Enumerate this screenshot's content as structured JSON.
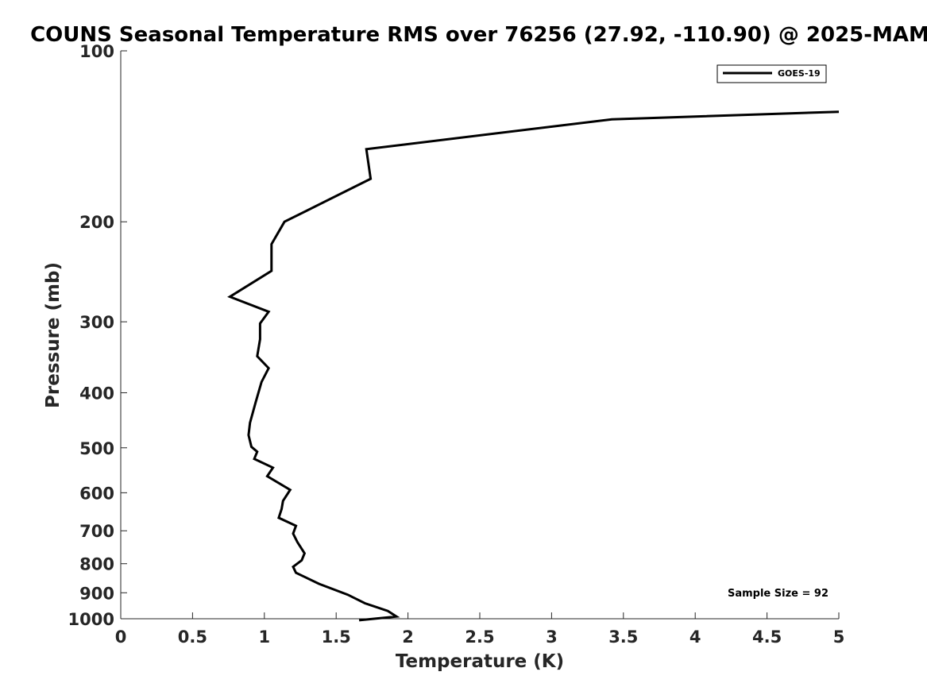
{
  "chart_data": {
    "type": "line",
    "title": "COUNS Seasonal Temperature RMS over 76256 (27.92, -110.90) @ 2025-MAM",
    "xlabel": "Temperature (K)",
    "ylabel": "Pressure (mb)",
    "xlim": [
      0,
      5
    ],
    "ylim": [
      1000,
      100
    ],
    "yscale": "log",
    "grid": false,
    "legend_position": "top-right",
    "x_ticks": [
      "0",
      "0.5",
      "1",
      "1.5",
      "2",
      "2.5",
      "3",
      "3.5",
      "4",
      "4.5",
      "5"
    ],
    "x_tick_values": [
      0,
      0.5,
      1,
      1.5,
      2,
      2.5,
      3,
      3.5,
      4,
      4.5,
      5
    ],
    "y_ticks": [
      "100",
      "200",
      "300",
      "400",
      "500",
      "600",
      "700",
      "800",
      "900",
      "1000"
    ],
    "y_tick_values": [
      100,
      200,
      300,
      400,
      500,
      600,
      700,
      800,
      900,
      1000
    ],
    "series": [
      {
        "name": "GOES-19",
        "color": "#000000",
        "x": [
          5.0,
          3.42,
          1.71,
          1.74,
          1.14,
          1.05,
          1.05,
          0.76,
          1.03,
          0.97,
          0.97,
          0.95,
          1.03,
          0.98,
          0.94,
          0.9,
          0.89,
          0.91,
          0.95,
          0.93,
          1.06,
          1.02,
          1.18,
          1.13,
          1.12,
          1.1,
          1.22,
          1.2,
          1.23,
          1.28,
          1.26,
          1.2,
          1.22,
          1.38,
          1.58,
          1.7,
          1.86,
          1.92,
          1.66
        ],
        "y": [
          128,
          132,
          149,
          168,
          200,
          219,
          244,
          271,
          288,
          302,
          322,
          345,
          362,
          383,
          415,
          452,
          475,
          498,
          508,
          523,
          542,
          561,
          593,
          620,
          641,
          664,
          686,
          708,
          733,
          767,
          789,
          810,
          830,
          868,
          907,
          939,
          969,
          991,
          1006
        ]
      }
    ],
    "annotations": [
      {
        "text": "Sample Size = 92"
      }
    ]
  }
}
